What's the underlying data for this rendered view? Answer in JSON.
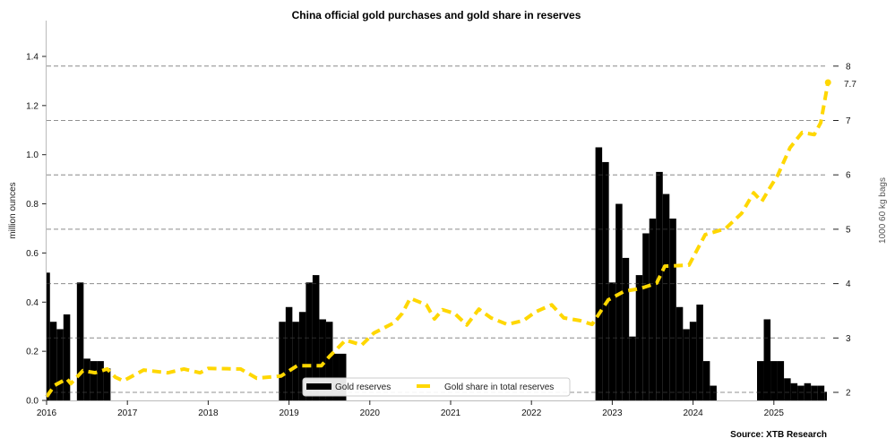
{
  "chart_data": {
    "type": "bar+line",
    "title": "China official gold purchases and gold share in reserves",
    "source": "Source: XTB Research",
    "ylabel_left": "million ounces",
    "ylabel_right": "1000 60 kg bags",
    "ylim_left": [
      0,
      1.55
    ],
    "ylim_right": [
      1.85,
      8.4
    ],
    "xlim": [
      "2016-01",
      "2025-09"
    ],
    "left_ticks": [
      "0.0",
      "0.2",
      "0.4",
      "0.6",
      "0.8",
      "1.0",
      "1.2",
      "1.4"
    ],
    "right_ticks": [
      "2",
      "3",
      "4",
      "5",
      "6",
      "7",
      "8"
    ],
    "x_ticks": [
      "2016",
      "2017",
      "2018",
      "2019",
      "2020",
      "2021",
      "2022",
      "2023",
      "2024",
      "2025"
    ],
    "grid": "horizontal dashed on right axis ticks",
    "legend_position": "lower-center",
    "colors": {
      "bars": "#000000",
      "line": "#FFD700",
      "grid": "#cccccc"
    },
    "series": [
      {
        "name": "Gold reserves",
        "type": "bar",
        "axis": "left",
        "points": [
          [
            "2016-01",
            0.52
          ],
          [
            "2016-02",
            0.32
          ],
          [
            "2016-03",
            0.29
          ],
          [
            "2016-04",
            0.35
          ],
          [
            "2016-05",
            0
          ],
          [
            "2016-06",
            0.48
          ],
          [
            "2016-07",
            0.17
          ],
          [
            "2016-08",
            0.16
          ],
          [
            "2016-09",
            0.16
          ],
          [
            "2016-10",
            0.13
          ],
          [
            "2018-12",
            0.32
          ],
          [
            "2019-01",
            0.38
          ],
          [
            "2019-02",
            0.32
          ],
          [
            "2019-03",
            0.36
          ],
          [
            "2019-04",
            0.48
          ],
          [
            "2019-05",
            0.51
          ],
          [
            "2019-06",
            0.33
          ],
          [
            "2019-07",
            0.32
          ],
          [
            "2019-08",
            0.19
          ],
          [
            "2019-09",
            0.19
          ],
          [
            "2022-11",
            1.03
          ],
          [
            "2022-12",
            0.97
          ],
          [
            "2023-01",
            0.48
          ],
          [
            "2023-02",
            0.8
          ],
          [
            "2023-03",
            0.58
          ],
          [
            "2023-04",
            0.26
          ],
          [
            "2023-05",
            0.51
          ],
          [
            "2023-06",
            0.68
          ],
          [
            "2023-07",
            0.74
          ],
          [
            "2023-08",
            0.93
          ],
          [
            "2023-09",
            0.84
          ],
          [
            "2023-10",
            0.74
          ],
          [
            "2023-11",
            0.38
          ],
          [
            "2023-12",
            0.29
          ],
          [
            "2024-01",
            0.32
          ],
          [
            "2024-02",
            0.39
          ],
          [
            "2024-03",
            0.16
          ],
          [
            "2024-04",
            0.06
          ],
          [
            "2024-11",
            0.16
          ],
          [
            "2024-12",
            0.33
          ],
          [
            "2025-01",
            0.16
          ],
          [
            "2025-02",
            0.16
          ],
          [
            "2025-03",
            0.09
          ],
          [
            "2025-04",
            0.07
          ],
          [
            "2025-05",
            0.06
          ],
          [
            "2025-06",
            0.07
          ],
          [
            "2025-07",
            0.06
          ],
          [
            "2025-08",
            0.06
          ],
          [
            "2025-09",
            0.035
          ]
        ]
      },
      {
        "name": "Gold share in total reserves",
        "type": "line",
        "axis": "right",
        "last_label": "7.7",
        "points": [
          [
            2016.0,
            1.92
          ],
          [
            2016.1,
            2.13
          ],
          [
            2016.25,
            2.25
          ],
          [
            2016.3,
            2.16
          ],
          [
            2016.45,
            2.4
          ],
          [
            2016.6,
            2.36
          ],
          [
            2016.75,
            2.43
          ],
          [
            2016.85,
            2.28
          ],
          [
            2016.95,
            2.21
          ],
          [
            2017.2,
            2.41
          ],
          [
            2017.5,
            2.36
          ],
          [
            2017.7,
            2.43
          ],
          [
            2017.9,
            2.36
          ],
          [
            2018.0,
            2.44
          ],
          [
            2018.4,
            2.43
          ],
          [
            2018.6,
            2.26
          ],
          [
            2018.9,
            2.3
          ],
          [
            2019.1,
            2.49
          ],
          [
            2019.4,
            2.49
          ],
          [
            2019.5,
            2.66
          ],
          [
            2019.7,
            2.96
          ],
          [
            2019.9,
            2.87
          ],
          [
            2020.05,
            3.09
          ],
          [
            2020.3,
            3.28
          ],
          [
            2020.4,
            3.45
          ],
          [
            2020.5,
            3.73
          ],
          [
            2020.7,
            3.61
          ],
          [
            2020.8,
            3.35
          ],
          [
            2020.9,
            3.52
          ],
          [
            2021.05,
            3.45
          ],
          [
            2021.2,
            3.24
          ],
          [
            2021.35,
            3.53
          ],
          [
            2021.5,
            3.37
          ],
          [
            2021.7,
            3.25
          ],
          [
            2021.9,
            3.32
          ],
          [
            2022.05,
            3.48
          ],
          [
            2022.25,
            3.61
          ],
          [
            2022.4,
            3.37
          ],
          [
            2022.6,
            3.32
          ],
          [
            2022.75,
            3.25
          ],
          [
            2022.95,
            3.7
          ],
          [
            2023.15,
            3.86
          ],
          [
            2023.35,
            3.91
          ],
          [
            2023.55,
            4.01
          ],
          [
            2023.65,
            4.32
          ],
          [
            2023.95,
            4.34
          ],
          [
            2024.15,
            4.9
          ],
          [
            2024.4,
            5.01
          ],
          [
            2024.6,
            5.29
          ],
          [
            2024.75,
            5.67
          ],
          [
            2024.85,
            5.51
          ],
          [
            2024.95,
            5.76
          ],
          [
            2025.05,
            6.0
          ],
          [
            2025.2,
            6.5
          ],
          [
            2025.35,
            6.78
          ],
          [
            2025.5,
            6.74
          ],
          [
            2025.58,
            6.96
          ],
          [
            2025.67,
            7.7
          ]
        ]
      }
    ]
  }
}
